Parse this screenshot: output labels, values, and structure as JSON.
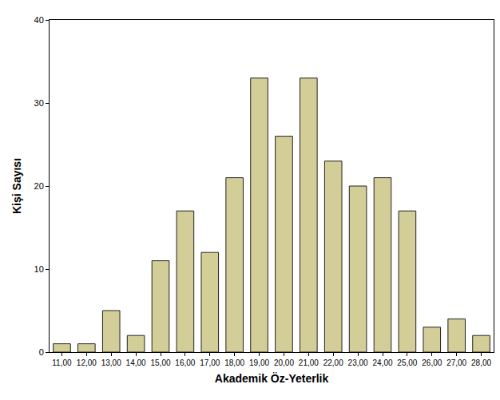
{
  "chart_data": {
    "type": "bar",
    "x_label": "Akademik Öz-Yeterlik",
    "y_label": "Kişi Sayısı",
    "categories": [
      "11,00",
      "12,00",
      "13,00",
      "14,00",
      "15,00",
      "16,00",
      "17,00",
      "18,00",
      "19,00",
      "20,00",
      "21,00",
      "22,00",
      "23,00",
      "24,00",
      "25,00",
      "26,00",
      "27,00",
      "28,00"
    ],
    "values": [
      1,
      1,
      5,
      2,
      11,
      17,
      12,
      21,
      33,
      26,
      33,
      23,
      20,
      21,
      17,
      3,
      4,
      2
    ],
    "color": "#d3ce97",
    "ylim": [
      0,
      40
    ],
    "yticks": [
      0,
      10,
      20,
      30,
      40
    ],
    "grid": false
  }
}
